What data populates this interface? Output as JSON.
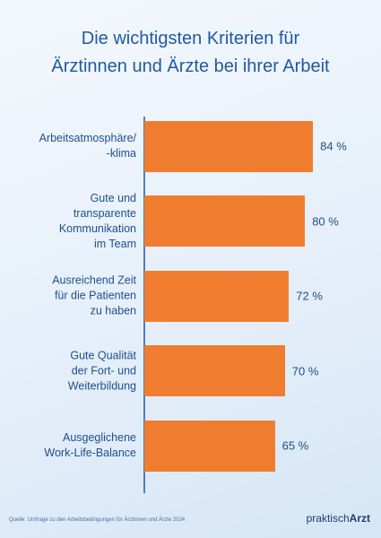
{
  "chart_data": {
    "type": "bar",
    "orientation": "horizontal",
    "title": "Die wichtigsten Kriterien für\nÄrztinnen und Ärzte bei ihrer Arbeit",
    "categories": [
      "Arbeitsatmosphäre/\n-klima",
      "Gute und\ntransparente\nKommunikation\nim Team",
      "Ausreichend Zeit\nfür die Patienten\nzu haben",
      "Gute Qualität\nder Fort- und\nWeiterbildung",
      "Ausgeglichene\nWork-Life-Balance"
    ],
    "values": [
      84,
      80,
      72,
      70,
      65
    ],
    "value_labels": [
      "84 %",
      "80 %",
      "72 %",
      "70 %",
      "65 %"
    ],
    "color": "#f07d2f",
    "source": "Quelle: Umfrage zu den Arbeitsbedingungen für Ärztinnen und Ärzte 2024",
    "logo": [
      "praktisch",
      "Arzt"
    ]
  }
}
